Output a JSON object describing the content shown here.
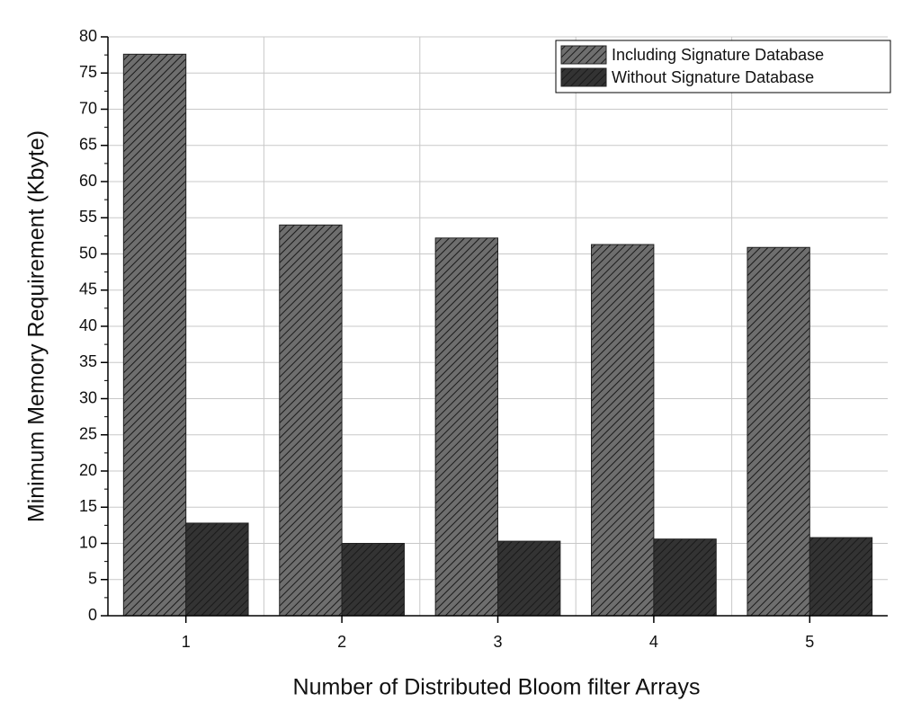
{
  "chart_data": {
    "type": "bar",
    "x_label": "Number of Distributed Bloom filter Arrays",
    "y_label": "Minimum Memory Requirement (Kbyte)",
    "categories": [
      "1",
      "2",
      "3",
      "4",
      "5"
    ],
    "series": [
      {
        "name": "Including Signature Database",
        "color": "#6e6e6e",
        "values": [
          77.6,
          54.0,
          52.2,
          51.3,
          50.9
        ]
      },
      {
        "name": "Without Signature Database",
        "color": "#333333",
        "values": [
          12.8,
          10.0,
          10.3,
          10.6,
          10.8
        ]
      }
    ],
    "ylim": [
      0,
      80
    ],
    "yticks": [
      0,
      5,
      10,
      15,
      20,
      25,
      30,
      35,
      40,
      45,
      50,
      55,
      60,
      65,
      70,
      75,
      80
    ],
    "grid": true,
    "legend": "top-right"
  }
}
